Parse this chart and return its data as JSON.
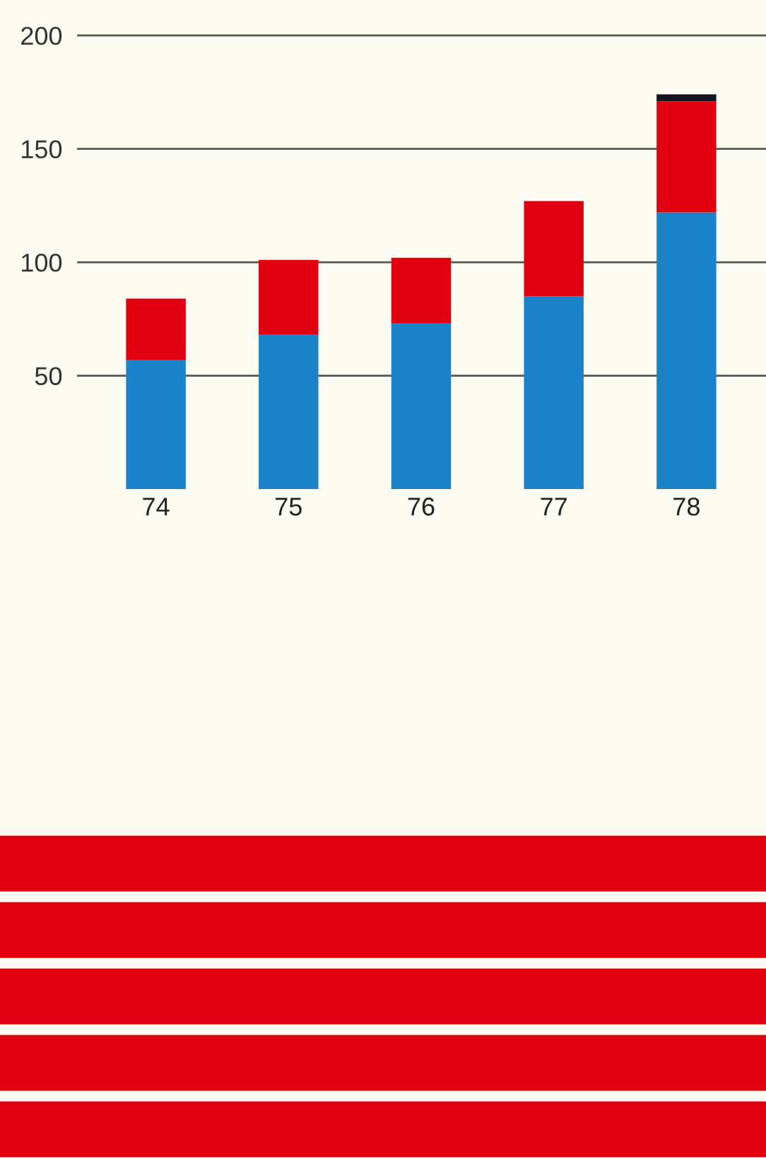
{
  "chart_data": {
    "type": "bar",
    "stacked": true,
    "categories": [
      "74",
      "75",
      "76",
      "77",
      "78"
    ],
    "series": [
      {
        "color": "#1a82c8",
        "values": [
          57,
          68,
          73,
          85,
          122
        ]
      },
      {
        "color": "#e0000f",
        "values": [
          27,
          33,
          29,
          42,
          49
        ]
      },
      {
        "color": "#151520",
        "values": [
          null,
          null,
          null,
          null,
          3
        ]
      }
    ],
    "ylim": [
      0,
      210
    ],
    "yticks": [
      50,
      100,
      150,
      200
    ],
    "grid": "y",
    "legend": false
  }
}
